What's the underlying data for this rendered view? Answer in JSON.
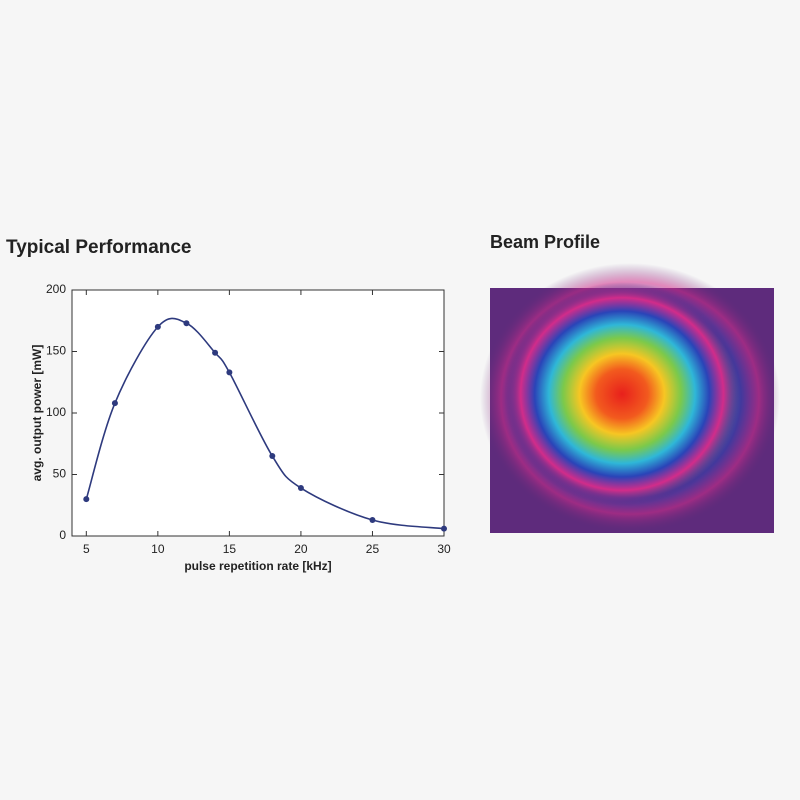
{
  "chart_data": {
    "type": "line",
    "title": "Typical Performance",
    "x_label": "pulse repetition rate [kHz]",
    "y_label": "avg. output power [mW]",
    "x": [
      5,
      7,
      10,
      12,
      14,
      15,
      18,
      20,
      25,
      30
    ],
    "series": [
      {
        "name": "avg. output power",
        "color": "#2e3a7e",
        "values": [
          30,
          108,
          170,
          173,
          149,
          133,
          65,
          39,
          13,
          6
        ]
      }
    ],
    "xlim": [
      4,
      30
    ],
    "xticks": [
      5,
      10,
      15,
      20,
      25,
      30
    ],
    "ylim": [
      0,
      200
    ],
    "yticks": [
      0,
      50,
      100,
      150,
      200
    ],
    "grid": false
  },
  "beam_profile": {
    "title": "Beam Profile"
  }
}
